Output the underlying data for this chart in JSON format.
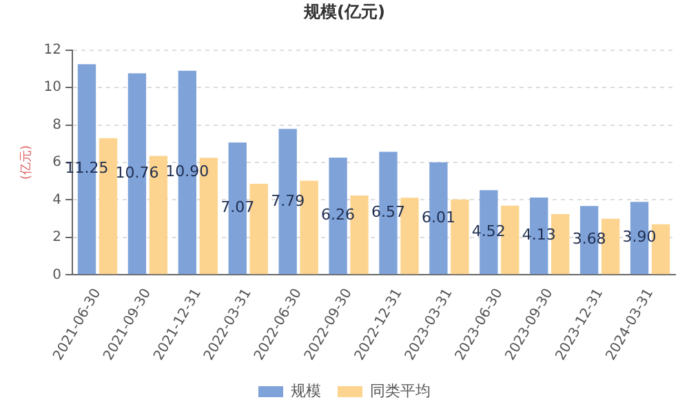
{
  "chart_data": {
    "type": "bar",
    "title": "规模(亿元)",
    "ylabel": "(亿元)",
    "categories": [
      "2021-06-30",
      "2021-09-30",
      "2021-12-31",
      "2022-03-31",
      "2022-06-30",
      "2022-09-30",
      "2022-12-31",
      "2023-03-31",
      "2023-06-30",
      "2023-09-30",
      "2023-12-31",
      "2024-03-31"
    ],
    "series": [
      {
        "name": "规模",
        "color": "#7fa3d9",
        "values": [
          11.25,
          10.76,
          10.9,
          7.07,
          7.79,
          6.26,
          6.57,
          6.01,
          4.52,
          4.13,
          3.68,
          3.9
        ],
        "value_labels": [
          "11.25",
          "10.76",
          "10.90",
          "7.07",
          "7.79",
          "6.26",
          "6.57",
          "6.01",
          "4.52",
          "4.13",
          "3.68",
          "3.90"
        ]
      },
      {
        "name": "同类平均",
        "color": "#fcd48f",
        "values": [
          7.3,
          6.35,
          6.25,
          4.86,
          5.03,
          4.24,
          4.12,
          4.03,
          3.7,
          3.25,
          3.0,
          2.7
        ]
      }
    ],
    "ylim": [
      0,
      12
    ],
    "yticks": [
      0,
      2,
      4,
      6,
      8,
      10,
      12
    ],
    "grid": "y",
    "legend": "bottom"
  }
}
